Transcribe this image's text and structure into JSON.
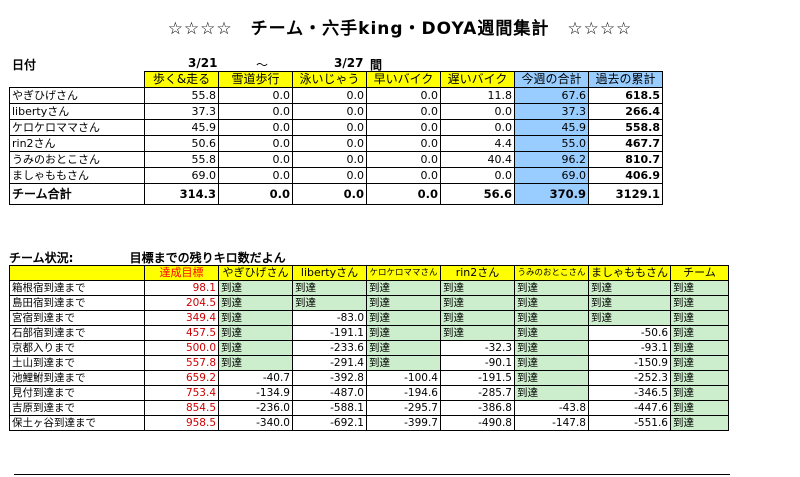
{
  "title": "☆☆☆☆　チーム・六手king・DOYA週間集計　☆☆☆☆",
  "period": {
    "label": "日付",
    "start": "3/21",
    "sep": "～",
    "end": "3/27",
    "suffix": "間"
  },
  "weekly": {
    "headers": [
      "歩く&走る",
      "雪道歩行",
      "泳いじゃう",
      "早いバイク",
      "遅いバイク",
      "今週の合計",
      "過去の累計"
    ],
    "rows": [
      {
        "name": "やぎひげさん",
        "values": [
          "55.8",
          "0.0",
          "0.0",
          "0.0",
          "11.8",
          "67.6",
          "618.5"
        ]
      },
      {
        "name": "libertyさん",
        "values": [
          "37.3",
          "0.0",
          "0.0",
          "0.0",
          "0.0",
          "37.3",
          "266.4"
        ]
      },
      {
        "name": "ケロケロママさん",
        "values": [
          "45.9",
          "0.0",
          "0.0",
          "0.0",
          "0.0",
          "45.9",
          "558.8"
        ]
      },
      {
        "name": "rin2さん",
        "values": [
          "50.6",
          "0.0",
          "0.0",
          "0.0",
          "4.4",
          "55.0",
          "467.7"
        ]
      },
      {
        "name": "うみのおとこさん",
        "values": [
          "55.8",
          "0.0",
          "0.0",
          "0.0",
          "40.4",
          "96.2",
          "810.7"
        ]
      },
      {
        "name": "ましゃももさん",
        "values": [
          "69.0",
          "0.0",
          "0.0",
          "0.0",
          "0.0",
          "69.0",
          "406.9"
        ]
      }
    ],
    "team": {
      "name": "チーム合計",
      "values": [
        "314.3",
        "0.0",
        "0.0",
        "0.0",
        "56.6",
        "370.9",
        "3129.1"
      ]
    }
  },
  "status": {
    "title": "チーム状況:",
    "subtitle": "目標までの残りキロ数だよん",
    "headers": [
      "達成目標",
      "やぎひげさん",
      "libertyさん",
      "ケロケロママさん",
      "rin2さん",
      "うみのおとこさん",
      "ましゃももさん",
      "チーム"
    ],
    "rows": [
      {
        "label": "箱根宿到達まで",
        "goal": "98.1",
        "cells": [
          "到達",
          "到達",
          "到達",
          "到達",
          "到達",
          "到達",
          "到達"
        ]
      },
      {
        "label": "島田宿到達まで",
        "goal": "204.5",
        "cells": [
          "到達",
          "到達",
          "到達",
          "到達",
          "到達",
          "到達",
          "到達"
        ]
      },
      {
        "label": "宮宿到達まで",
        "goal": "349.4",
        "cells": [
          "到達",
          "-83.0",
          "到達",
          "到達",
          "到達",
          "到達",
          "到達"
        ]
      },
      {
        "label": "石部宿到達まで",
        "goal": "457.5",
        "cells": [
          "到達",
          "-191.1",
          "到達",
          "到達",
          "到達",
          "-50.6",
          "到達"
        ]
      },
      {
        "label": "京都入りまで",
        "goal": "500.0",
        "cells": [
          "到達",
          "-233.6",
          "到達",
          "-32.3",
          "到達",
          "-93.1",
          "到達"
        ]
      },
      {
        "label": "土山到達まで",
        "goal": "557.8",
        "cells": [
          "到達",
          "-291.4",
          "到達",
          "-90.1",
          "到達",
          "-150.9",
          "到達"
        ]
      },
      {
        "label": "池鯉鮒到達まで",
        "goal": "659.2",
        "cells": [
          "-40.7",
          "-392.8",
          "-100.4",
          "-191.5",
          "到達",
          "-252.3",
          "到達"
        ]
      },
      {
        "label": "見付到達まで",
        "goal": "753.4",
        "cells": [
          "-134.9",
          "-487.0",
          "-194.6",
          "-285.7",
          "到達",
          "-346.5",
          "到達"
        ]
      },
      {
        "label": "吉原到達まで",
        "goal": "854.5",
        "cells": [
          "-236.0",
          "-588.1",
          "-295.7",
          "-386.8",
          "-43.8",
          "-447.6",
          "到達"
        ]
      },
      {
        "label": "保土ヶ谷到達まで",
        "goal": "958.5",
        "cells": [
          "-340.0",
          "-692.1",
          "-399.7",
          "-490.8",
          "-147.8",
          "-551.6",
          "到達"
        ]
      }
    ]
  }
}
